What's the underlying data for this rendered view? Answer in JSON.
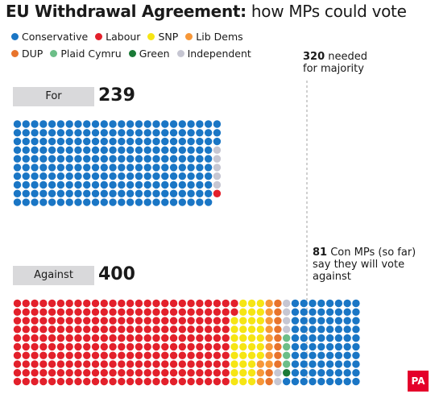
{
  "title": {
    "bold": "EU Withdrawal Agreement:",
    "rest": " how MPs could vote"
  },
  "colors": {
    "Conservative": "#1a76c5",
    "Labour": "#e3202b",
    "SNP": "#f6e514",
    "Lib Dems": "#f79738",
    "DUP": "#e8742c",
    "Plaid Cymru": "#6cbe88",
    "Green": "#1b7a37",
    "Independent": "#c6c6d2"
  },
  "legend": [
    {
      "name": "Conservative",
      "icon": "conservative-dot-icon"
    },
    {
      "name": "Labour",
      "icon": "labour-dot-icon"
    },
    {
      "name": "SNP",
      "icon": "snp-dot-icon"
    },
    {
      "name": "Lib Dems",
      "icon": "lib-dems-dot-icon"
    },
    {
      "name": "DUP",
      "icon": "dup-dot-icon"
    },
    {
      "name": "Plaid Cymru",
      "icon": "plaid-cymru-dot-icon"
    },
    {
      "name": "Green",
      "icon": "green-dot-icon"
    },
    {
      "name": "Independent",
      "icon": "independent-dot-icon"
    }
  ],
  "majority_note": {
    "value": "320",
    "text": " needed",
    "line2": "for majority"
  },
  "con_note": {
    "line1_bold": "81",
    "line1": " Con MPs (so far)",
    "line2": "say they will vote",
    "line3": "against"
  },
  "logo": "PA",
  "chart_data": {
    "type": "waffle",
    "majority_threshold": 320,
    "groups": [
      {
        "label": "For",
        "total": "239",
        "composition": [
          {
            "party": "Conservative",
            "count": 233
          },
          {
            "party": "Independent",
            "count": 5
          },
          {
            "party": "Labour",
            "count": 1
          }
        ]
      },
      {
        "label": "Against",
        "total": "400",
        "composition": [
          {
            "party": "Labour",
            "count": 252
          },
          {
            "party": "SNP",
            "count": 35
          },
          {
            "party": "Lib Dems",
            "count": 11
          },
          {
            "party": "DUP",
            "count": 10
          },
          {
            "party": "Independent",
            "count": 6
          },
          {
            "party": "Plaid Cymru",
            "count": 4
          },
          {
            "party": "Green",
            "count": 1
          },
          {
            "party": "Conservative",
            "count": 81
          }
        ]
      }
    ]
  }
}
